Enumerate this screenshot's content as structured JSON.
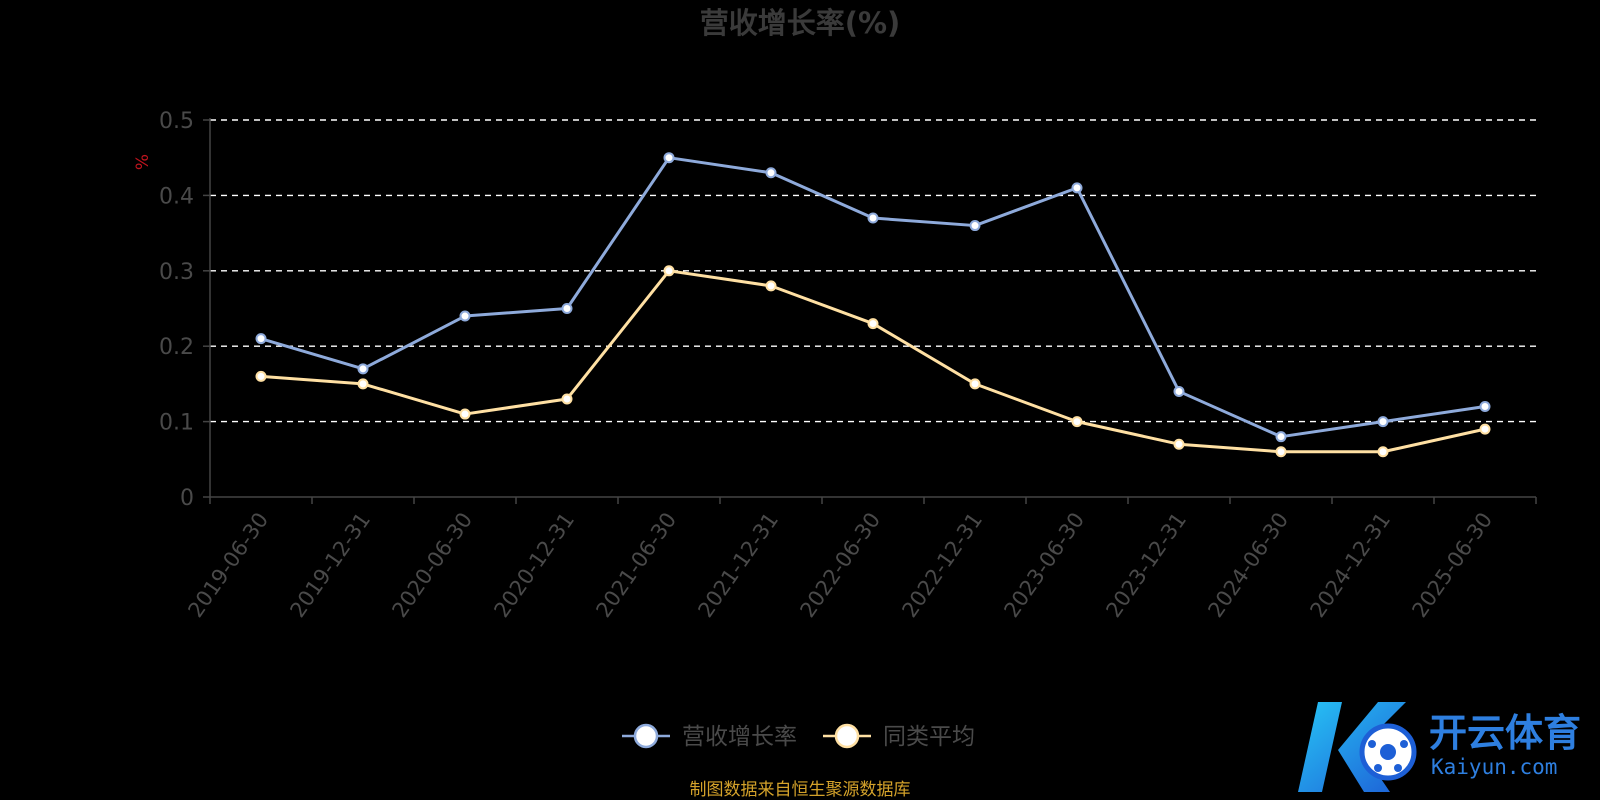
{
  "chart_data": {
    "type": "line",
    "title": "营收增长率(%)",
    "unit_label": "%",
    "categories": [
      "2019-06-30",
      "2019-12-31",
      "2020-06-30",
      "2020-12-31",
      "2021-06-30",
      "2021-12-31",
      "2022-06-30",
      "2022-12-31",
      "2023-06-30",
      "2023-12-31",
      "2024-06-30",
      "2024-12-31",
      "2025-06-30"
    ],
    "series": [
      {
        "name": "营收增长率",
        "color": "#8eaadb",
        "values": [
          0.21,
          0.17,
          0.24,
          0.25,
          0.45,
          0.43,
          0.37,
          0.36,
          0.41,
          0.14,
          0.08,
          0.1,
          0.12
        ]
      },
      {
        "name": "同类平均",
        "color": "#ffe0a3",
        "values": [
          0.16,
          0.15,
          0.11,
          0.13,
          0.3,
          0.28,
          0.23,
          0.15,
          0.1,
          0.07,
          0.06,
          0.06,
          0.09
        ]
      }
    ],
    "ylim": [
      0,
      0.5
    ],
    "yticks": [
      "0",
      "0.1",
      "0.2",
      "0.3",
      "0.4",
      "0.5"
    ],
    "grid": true,
    "legend_position": "bottom-center",
    "source_note": "制图数据来自恒生聚源数据库"
  },
  "watermark": {
    "cn": "开云体育",
    "en": "Kaiyun.com"
  }
}
